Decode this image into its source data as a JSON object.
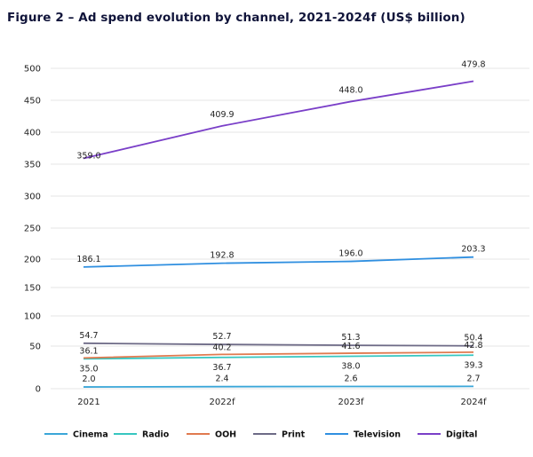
{
  "chart_data": {
    "type": "line",
    "title": "Figure 2 – Ad spend evolution by channel, 2021-2024f (US$ billion)",
    "xlabel": "",
    "ylabel": "",
    "categories": [
      "2021",
      "2022f",
      "2023f",
      "2024f"
    ],
    "y_ticks": [
      "0",
      "50",
      "100",
      "150",
      "200",
      "250",
      "300",
      "350",
      "400",
      "450",
      "500"
    ],
    "ylim": [
      0,
      500
    ],
    "grid": true,
    "legend_position": "bottom",
    "series": [
      {
        "name": "Cinema",
        "color": "#3aa6d8",
        "values": [
          2.0,
          2.4,
          2.6,
          2.7
        ],
        "labels": [
          "2.0",
          "2.4",
          "2.6",
          "2.7"
        ]
      },
      {
        "name": "Radio",
        "color": "#36c6c0",
        "values": [
          35.0,
          36.7,
          38.0,
          39.3
        ],
        "labels": [
          "35.0",
          "36.7",
          "38.0",
          "39.3"
        ]
      },
      {
        "name": "OOH",
        "color": "#e07a4f",
        "values": [
          36.1,
          40.2,
          41.6,
          42.8
        ],
        "labels": [
          "36.1",
          "40.2",
          "41.6",
          "42.8"
        ]
      },
      {
        "name": "Print",
        "color": "#6d6a86",
        "values": [
          54.7,
          52.7,
          51.3,
          50.4
        ],
        "labels": [
          "54.7",
          "52.7",
          "51.3",
          "50.4"
        ]
      },
      {
        "name": "Television",
        "color": "#2f8fe0",
        "values": [
          186.1,
          192.8,
          196.0,
          203.3
        ],
        "labels": [
          "186.1",
          "192.8",
          "196.0",
          "203.3"
        ]
      },
      {
        "name": "Digital",
        "color": "#7a3fc8",
        "values": [
          359.0,
          409.9,
          448.0,
          479.8
        ],
        "labels": [
          "359.0",
          "409.9",
          "448.0",
          "479.8"
        ]
      }
    ]
  }
}
